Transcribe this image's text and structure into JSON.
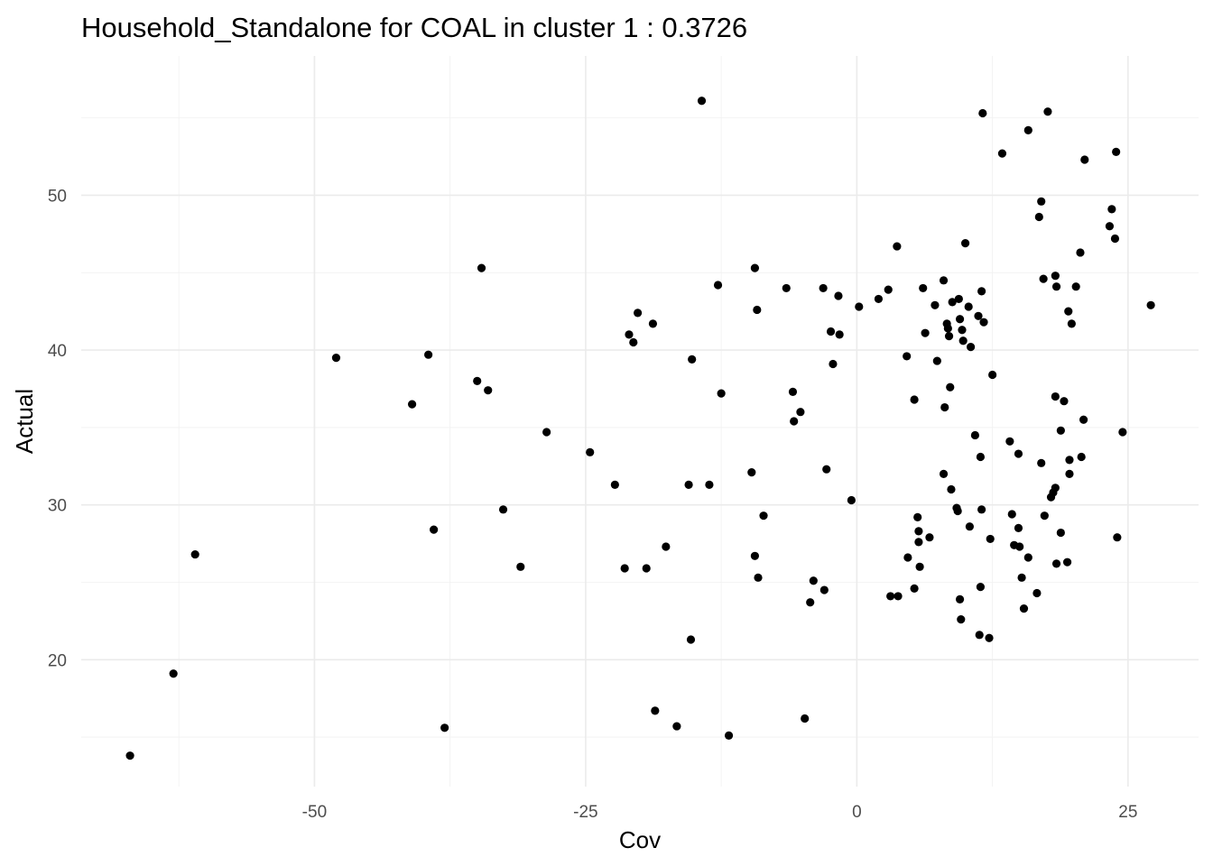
{
  "chart_data": {
    "type": "scatter",
    "title": "Household_Standalone for COAL in cluster 1 : 0.3726",
    "xlabel": "Cov",
    "ylabel": "Actual",
    "xlim": [
      -71.5,
      31.5
    ],
    "ylim": [
      11.8,
      59.0
    ],
    "x_ticks": [
      -50,
      -25,
      0,
      25
    ],
    "y_ticks": [
      20,
      30,
      40,
      50
    ],
    "x_tick_labels": [
      "-50",
      "-25",
      "0",
      "25"
    ],
    "y_tick_labels": [
      "20",
      "30",
      "40",
      "50"
    ],
    "grid": true,
    "point_color": "#000000",
    "points": [
      [
        -67,
        13.8
      ],
      [
        -63,
        19.1
      ],
      [
        -61,
        26.8
      ],
      [
        -48,
        39.5
      ],
      [
        -41,
        36.5
      ],
      [
        -39.5,
        39.7
      ],
      [
        -39,
        28.4
      ],
      [
        -38,
        15.6
      ],
      [
        -35,
        38.0
      ],
      [
        -34.6,
        45.3
      ],
      [
        -34,
        37.4
      ],
      [
        -32.6,
        29.7
      ],
      [
        -31,
        26.0
      ],
      [
        -28.6,
        34.7
      ],
      [
        -24.6,
        33.4
      ],
      [
        -22.3,
        31.3
      ],
      [
        -21.4,
        25.9
      ],
      [
        -21,
        41.0
      ],
      [
        -20.6,
        40.5
      ],
      [
        -20.2,
        42.4
      ],
      [
        -19.4,
        25.9
      ],
      [
        -18.8,
        41.7
      ],
      [
        -18.6,
        16.7
      ],
      [
        -17.6,
        27.3
      ],
      [
        -16.6,
        15.7
      ],
      [
        -15.5,
        31.3
      ],
      [
        -15.2,
        39.4
      ],
      [
        -15.3,
        21.3
      ],
      [
        -14.3,
        56.1
      ],
      [
        -13.6,
        31.3
      ],
      [
        -12.8,
        44.2
      ],
      [
        -12.5,
        37.2
      ],
      [
        -11.8,
        15.1
      ],
      [
        -9.7,
        32.1
      ],
      [
        -9.4,
        45.3
      ],
      [
        -9.2,
        42.6
      ],
      [
        -9.4,
        26.7
      ],
      [
        -9.1,
        25.3
      ],
      [
        -8.6,
        29.3
      ],
      [
        -6.5,
        44.0
      ],
      [
        -5.9,
        37.3
      ],
      [
        -5.8,
        35.4
      ],
      [
        -5.2,
        36.0
      ],
      [
        -4.8,
        16.2
      ],
      [
        -4.3,
        23.7
      ],
      [
        -4.0,
        25.1
      ],
      [
        -3.1,
        44.0
      ],
      [
        -3.0,
        24.5
      ],
      [
        -2.8,
        32.3
      ],
      [
        -2.4,
        41.2
      ],
      [
        -2.2,
        39.1
      ],
      [
        -1.7,
        43.5
      ],
      [
        -1.6,
        41.0
      ],
      [
        -0.5,
        30.3
      ],
      [
        0.2,
        42.8
      ],
      [
        2.0,
        43.3
      ],
      [
        2.9,
        43.9
      ],
      [
        3.1,
        24.1
      ],
      [
        3.7,
        46.7
      ],
      [
        3.8,
        24.1
      ],
      [
        4.6,
        39.6
      ],
      [
        4.7,
        26.6
      ],
      [
        5.3,
        36.8
      ],
      [
        5.3,
        24.6
      ],
      [
        5.6,
        29.2
      ],
      [
        5.7,
        28.3
      ],
      [
        5.7,
        27.6
      ],
      [
        5.8,
        26.0
      ],
      [
        6.1,
        44.0
      ],
      [
        6.3,
        41.1
      ],
      [
        6.7,
        27.9
      ],
      [
        7.2,
        42.9
      ],
      [
        7.4,
        39.3
      ],
      [
        8.0,
        44.5
      ],
      [
        8.1,
        36.3
      ],
      [
        8.0,
        32.0
      ],
      [
        8.3,
        41.7
      ],
      [
        8.4,
        41.4
      ],
      [
        8.5,
        40.9
      ],
      [
        8.6,
        37.6
      ],
      [
        8.7,
        31.0
      ],
      [
        8.8,
        43.1
      ],
      [
        9.2,
        29.8
      ],
      [
        9.3,
        29.6
      ],
      [
        9.4,
        43.3
      ],
      [
        9.5,
        42.0
      ],
      [
        9.5,
        23.9
      ],
      [
        9.6,
        22.6
      ],
      [
        9.7,
        41.3
      ],
      [
        9.8,
        40.6
      ],
      [
        10.0,
        46.9
      ],
      [
        10.3,
        42.8
      ],
      [
        10.4,
        28.6
      ],
      [
        10.5,
        40.2
      ],
      [
        10.9,
        34.5
      ],
      [
        11.2,
        42.2
      ],
      [
        11.3,
        21.6
      ],
      [
        11.4,
        24.7
      ],
      [
        11.4,
        33.1
      ],
      [
        11.5,
        29.7
      ],
      [
        11.5,
        43.8
      ],
      [
        11.6,
        55.3
      ],
      [
        11.7,
        41.8
      ],
      [
        12.3,
        27.8
      ],
      [
        12.2,
        21.4
      ],
      [
        12.5,
        38.4
      ],
      [
        13.4,
        52.7
      ],
      [
        14.1,
        34.1
      ],
      [
        14.3,
        29.4
      ],
      [
        14.5,
        27.4
      ],
      [
        14.9,
        28.5
      ],
      [
        14.9,
        33.3
      ],
      [
        15.0,
        27.3
      ],
      [
        15.2,
        25.3
      ],
      [
        15.4,
        23.3
      ],
      [
        15.8,
        26.6
      ],
      [
        15.8,
        54.2
      ],
      [
        16.6,
        24.3
      ],
      [
        16.8,
        48.6
      ],
      [
        17.0,
        32.7
      ],
      [
        17.0,
        49.6
      ],
      [
        17.2,
        44.6
      ],
      [
        17.3,
        29.3
      ],
      [
        17.6,
        55.4
      ],
      [
        17.9,
        30.5
      ],
      [
        18.1,
        30.8
      ],
      [
        18.3,
        37.0
      ],
      [
        18.3,
        31.1
      ],
      [
        18.3,
        44.8
      ],
      [
        18.4,
        44.1
      ],
      [
        18.4,
        26.2
      ],
      [
        18.8,
        34.8
      ],
      [
        18.8,
        28.2
      ],
      [
        19.1,
        36.7
      ],
      [
        19.4,
        26.3
      ],
      [
        19.5,
        42.5
      ],
      [
        19.6,
        32.0
      ],
      [
        19.6,
        32.9
      ],
      [
        19.8,
        41.7
      ],
      [
        20.2,
        44.1
      ],
      [
        20.6,
        46.3
      ],
      [
        20.7,
        33.1
      ],
      [
        20.9,
        35.5
      ],
      [
        21.0,
        52.3
      ],
      [
        23.3,
        48.0
      ],
      [
        23.5,
        49.1
      ],
      [
        23.8,
        47.2
      ],
      [
        23.9,
        52.8
      ],
      [
        24.0,
        27.9
      ],
      [
        24.5,
        34.7
      ],
      [
        27.1,
        42.9
      ]
    ]
  }
}
